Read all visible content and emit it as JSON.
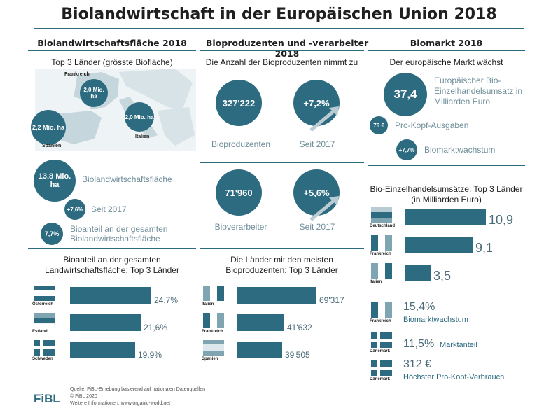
{
  "title": "Biolandwirtschaft in der Europäischen Union 2018",
  "colors": {
    "primary": "#2d6b80",
    "light": "#7fa5b3",
    "text": "#1f1f1f"
  },
  "col1": {
    "heading": "Biolandwirtschaftsfläche 2018",
    "map_title": "Top 3 Länder (grösste Biofläche)",
    "map_labels": {
      "france": "Frankreich",
      "spain": "Spanien",
      "italy": "Italien"
    },
    "map_values": {
      "france": "2,0 Mio. ha",
      "spain": "2,2 Mio. ha",
      "italy": "2,0 Mio. ha"
    },
    "area_value": "13,8 Mio. ha",
    "area_label": "Biolandwirtschaftsfläche",
    "growth_value": "+7,6%",
    "growth_label": "Seit 2017",
    "share_value": "7,7%",
    "share_label": "Bioanteil an der gesamten Biolandwirtschaftsfläche",
    "bars_title": "Bioanteil an der gesamten Landwirtschaftsfläche: Top 3 Länder"
  },
  "col2": {
    "heading": "Bioproduzenten und -verarbeiter 2018",
    "sub": "Die Anzahl der Bioproduzenten nimmt zu",
    "producers_value": "327'222",
    "producers_label": "Bioproduzenten",
    "producers_growth": "+7,2%",
    "producers_growth_label": "Seit 2017",
    "processors_value": "71'960",
    "processors_label": "Bioverarbeiter",
    "processors_growth": "+5,6%",
    "processors_growth_label": "Seit 2017",
    "bars_title": "Die Länder mit den meisten Bioproduzenten: Top 3 Länder"
  },
  "col3": {
    "heading": "Biomarkt 2018",
    "sub": "Der europäische Markt wächst",
    "market_value": "37,4",
    "market_label": "Europäischer Bio-Einzelhandelsumsatz in Milliarden Euro",
    "percap_value": "76 €",
    "percap_label": "Pro-Kopf-Ausgaben",
    "growth_value": "+7,7%",
    "growth_label": "Biomarktwachstum",
    "bars_title": "Bio-Einzelhandelsumsätze: Top 3 Länder (in Milliarden Euro)",
    "facts": [
      {
        "country": "Frankreich",
        "value": "15,4%",
        "label": "Biomarktwachstum"
      },
      {
        "country": "Dänemark",
        "value": "11,5%",
        "label": "Marktanteil"
      },
      {
        "country": "Dänemark",
        "value": "312 €",
        "label": "Höchster Pro-Kopf-Verbrauch"
      }
    ]
  },
  "footer": {
    "source": "Quelle: FiBL-Erhebung basierend auf nationalen Datenquellen",
    "copy": "© FiBL 2020",
    "more": "Weitere Informationen: www.organic-world.net",
    "logo": "FiBL"
  },
  "chart_data": [
    {
      "type": "bar",
      "title": "Bioanteil an der gesamten Landwirtschaftsfläche: Top 3 Länder",
      "categories": [
        "Österreich",
        "Estland",
        "Schweden"
      ],
      "values": [
        24.7,
        21.6,
        19.9
      ],
      "value_labels": [
        "24,7%",
        "21,6%",
        "19,9%"
      ]
    },
    {
      "type": "bar",
      "title": "Die Länder mit den meisten Bioproduzenten: Top 3 Länder",
      "categories": [
        "Italien",
        "Frankreich",
        "Spanien"
      ],
      "values": [
        69317,
        41632,
        39505
      ],
      "value_labels": [
        "69'317",
        "41'632",
        "39'505"
      ]
    },
    {
      "type": "bar",
      "title": "Bio-Einzelhandelsumsätze: Top 3 Länder (in Milliarden Euro)",
      "categories": [
        "Deutschland",
        "Frankreich",
        "Italien"
      ],
      "values": [
        10.9,
        9.1,
        3.5
      ],
      "value_labels": [
        "10,9",
        "9,1",
        "3,5"
      ]
    }
  ]
}
